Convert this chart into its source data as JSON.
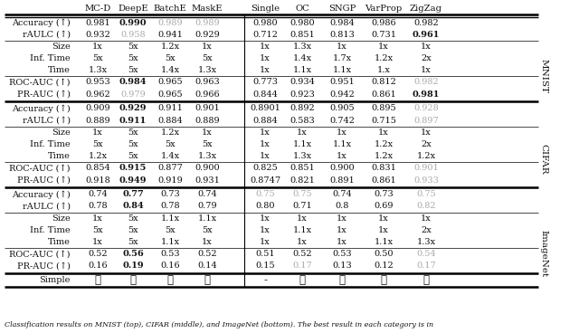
{
  "col_headers": [
    "MC-D",
    "DeepE",
    "BatchE",
    "MaskE",
    "Single",
    "OC",
    "SNGP",
    "VarProp",
    "ZigZag"
  ],
  "section_labels": [
    "MNIST",
    "CIFAR",
    "ImageNet"
  ],
  "rows": [
    {
      "section": "MNIST",
      "label": "Accuracy (↑)",
      "values": [
        "0.981",
        "0.990",
        "0.989",
        "0.989",
        "0.980",
        "0.980",
        "0.984",
        "0.986",
        "0.982"
      ],
      "bold": [
        false,
        true,
        false,
        false,
        false,
        false,
        false,
        false,
        false
      ],
      "gray": [
        false,
        false,
        true,
        true,
        false,
        false,
        false,
        false,
        false
      ]
    },
    {
      "section": "MNIST",
      "label": "rAULC (↑)",
      "values": [
        "0.932",
        "0.958",
        "0.941",
        "0.929",
        "0.712",
        "0.851",
        "0.813",
        "0.731",
        "0.961"
      ],
      "bold": [
        false,
        false,
        false,
        false,
        false,
        false,
        false,
        false,
        true
      ],
      "gray": [
        false,
        true,
        false,
        false,
        false,
        false,
        false,
        false,
        false
      ]
    },
    {
      "section": "MNIST",
      "label": "Size",
      "values": [
        "1x",
        "5x",
        "1.2x",
        "1x",
        "1x",
        "1.3x",
        "1x",
        "1x",
        "1x"
      ],
      "bold": [
        false,
        false,
        false,
        false,
        false,
        false,
        false,
        false,
        false
      ],
      "gray": [
        false,
        false,
        false,
        false,
        false,
        false,
        false,
        false,
        false
      ]
    },
    {
      "section": "MNIST",
      "label": "Inf. Time",
      "values": [
        "5x",
        "5x",
        "5x",
        "5x",
        "1x",
        "1.4x",
        "1.7x",
        "1.2x",
        "2x"
      ],
      "bold": [
        false,
        false,
        false,
        false,
        false,
        false,
        false,
        false,
        false
      ],
      "gray": [
        false,
        false,
        false,
        false,
        false,
        false,
        false,
        false,
        false
      ]
    },
    {
      "section": "MNIST",
      "label": "Time",
      "values": [
        "1.3x",
        "5x",
        "1.4x",
        "1.3x",
        "1x",
        "1.1x",
        "1.1x",
        "1.x",
        "1x"
      ],
      "bold": [
        false,
        false,
        false,
        false,
        false,
        false,
        false,
        false,
        false
      ],
      "gray": [
        false,
        false,
        false,
        false,
        false,
        false,
        false,
        false,
        false
      ]
    },
    {
      "section": "MNIST",
      "label": "ROC-AUC (↑)",
      "values": [
        "0.953",
        "0.984",
        "0.965",
        "0.963",
        "0.773",
        "0.934",
        "0.951",
        "0.812",
        "0.982"
      ],
      "bold": [
        false,
        true,
        false,
        false,
        false,
        false,
        false,
        false,
        false
      ],
      "gray": [
        false,
        false,
        false,
        false,
        false,
        false,
        false,
        false,
        true
      ]
    },
    {
      "section": "MNIST",
      "label": "PR-AUC (↑)",
      "values": [
        "0.962",
        "0.979",
        "0.965",
        "0.966",
        "0.844",
        "0.923",
        "0.942",
        "0.861",
        "0.981"
      ],
      "bold": [
        false,
        false,
        false,
        false,
        false,
        false,
        false,
        false,
        true
      ],
      "gray": [
        false,
        true,
        false,
        false,
        false,
        false,
        false,
        false,
        false
      ]
    },
    {
      "section": "CIFAR",
      "label": "Accuracy (↑)",
      "values": [
        "0.909",
        "0.929",
        "0.911",
        "0.901",
        "0.8901",
        "0.892",
        "0.905",
        "0.895",
        "0.928"
      ],
      "bold": [
        false,
        true,
        false,
        false,
        false,
        false,
        false,
        false,
        false
      ],
      "gray": [
        false,
        false,
        false,
        false,
        false,
        false,
        false,
        false,
        true
      ]
    },
    {
      "section": "CIFAR",
      "label": "rAULC (↑)",
      "values": [
        "0.889",
        "0.911",
        "0.884",
        "0.889",
        "0.884",
        "0.583",
        "0.742",
        "0.715",
        "0.897"
      ],
      "bold": [
        false,
        true,
        false,
        false,
        false,
        false,
        false,
        false,
        false
      ],
      "gray": [
        false,
        false,
        false,
        false,
        false,
        false,
        false,
        false,
        true
      ]
    },
    {
      "section": "CIFAR",
      "label": "Size",
      "values": [
        "1x",
        "5x",
        "1.2x",
        "1x",
        "1x",
        "1x",
        "1x",
        "1x",
        "1x"
      ],
      "bold": [
        false,
        false,
        false,
        false,
        false,
        false,
        false,
        false,
        false
      ],
      "gray": [
        false,
        false,
        false,
        false,
        false,
        false,
        false,
        false,
        false
      ]
    },
    {
      "section": "CIFAR",
      "label": "Inf. Time",
      "values": [
        "5x",
        "5x",
        "5x",
        "5x",
        "1x",
        "1.1x",
        "1.1x",
        "1.2x",
        "2x"
      ],
      "bold": [
        false,
        false,
        false,
        false,
        false,
        false,
        false,
        false,
        false
      ],
      "gray": [
        false,
        false,
        false,
        false,
        false,
        false,
        false,
        false,
        false
      ]
    },
    {
      "section": "CIFAR",
      "label": "Time",
      "values": [
        "1.2x",
        "5x",
        "1.4x",
        "1.3x",
        "1x",
        "1.3x",
        "1x",
        "1.2x",
        "1.2x"
      ],
      "bold": [
        false,
        false,
        false,
        false,
        false,
        false,
        false,
        false,
        false
      ],
      "gray": [
        false,
        false,
        false,
        false,
        false,
        false,
        false,
        false,
        false
      ]
    },
    {
      "section": "CIFAR",
      "label": "ROC-AUC (↑)",
      "values": [
        "0.854",
        "0.915",
        "0.877",
        "0.900",
        "0.825",
        "0.851",
        "0.900",
        "0.831",
        "0.901"
      ],
      "bold": [
        false,
        true,
        false,
        false,
        false,
        false,
        false,
        false,
        false
      ],
      "gray": [
        false,
        false,
        false,
        false,
        false,
        false,
        false,
        false,
        true
      ]
    },
    {
      "section": "CIFAR",
      "label": "PR-AUC (↑)",
      "values": [
        "0.918",
        "0.949",
        "0.919",
        "0.931",
        "0.8747",
        "0.821",
        "0.891",
        "0.861",
        "0.933"
      ],
      "bold": [
        false,
        true,
        false,
        false,
        false,
        false,
        false,
        false,
        false
      ],
      "gray": [
        false,
        false,
        false,
        false,
        false,
        false,
        false,
        false,
        true
      ]
    },
    {
      "section": "ImageNet",
      "label": "Accuracy (↑)",
      "values": [
        "0.74",
        "0.77",
        "0.73",
        "0.74",
        "0.75",
        "0.75",
        "0.74",
        "0.73",
        "0.75"
      ],
      "bold": [
        false,
        true,
        false,
        false,
        false,
        false,
        false,
        false,
        false
      ],
      "gray": [
        false,
        false,
        false,
        false,
        true,
        true,
        false,
        false,
        true
      ]
    },
    {
      "section": "ImageNet",
      "label": "rAULC (↑)",
      "values": [
        "0.78",
        "0.84",
        "0.78",
        "0.79",
        "0.80",
        "0.71",
        "0.8",
        "0.69",
        "0.82"
      ],
      "bold": [
        false,
        true,
        false,
        false,
        false,
        false,
        false,
        false,
        false
      ],
      "gray": [
        false,
        false,
        false,
        false,
        false,
        false,
        false,
        false,
        true
      ]
    },
    {
      "section": "ImageNet",
      "label": "Size",
      "values": [
        "1x",
        "5x",
        "1.1x",
        "1.1x",
        "1x",
        "1x",
        "1x",
        "1x",
        "1x"
      ],
      "bold": [
        false,
        false,
        false,
        false,
        false,
        false,
        false,
        false,
        false
      ],
      "gray": [
        false,
        false,
        false,
        false,
        false,
        false,
        false,
        false,
        false
      ]
    },
    {
      "section": "ImageNet",
      "label": "Inf. Time",
      "values": [
        "5x",
        "5x",
        "5x",
        "5x",
        "1x",
        "1.1x",
        "1x",
        "1x",
        "2x"
      ],
      "bold": [
        false,
        false,
        false,
        false,
        false,
        false,
        false,
        false,
        false
      ],
      "gray": [
        false,
        false,
        false,
        false,
        false,
        false,
        false,
        false,
        false
      ]
    },
    {
      "section": "ImageNet",
      "label": "Time",
      "values": [
        "1x",
        "5x",
        "1.1x",
        "1x",
        "1x",
        "1x",
        "1x",
        "1.1x",
        "1.3x"
      ],
      "bold": [
        false,
        false,
        false,
        false,
        false,
        false,
        false,
        false,
        false
      ],
      "gray": [
        false,
        false,
        false,
        false,
        false,
        false,
        false,
        false,
        false
      ]
    },
    {
      "section": "ImageNet",
      "label": "ROC-AUC (↑)",
      "values": [
        "0.52",
        "0.56",
        "0.53",
        "0.52",
        "0.51",
        "0.52",
        "0.53",
        "0.50",
        "0.54"
      ],
      "bold": [
        false,
        true,
        false,
        false,
        false,
        false,
        false,
        false,
        false
      ],
      "gray": [
        false,
        false,
        false,
        false,
        false,
        false,
        false,
        false,
        true
      ]
    },
    {
      "section": "ImageNet",
      "label": "PR-AUC (↑)",
      "values": [
        "0.16",
        "0.19",
        "0.16",
        "0.14",
        "0.15",
        "0.17",
        "0.13",
        "0.12",
        "0.17"
      ],
      "bold": [
        false,
        true,
        false,
        false,
        false,
        false,
        false,
        false,
        false
      ],
      "gray": [
        false,
        false,
        false,
        false,
        false,
        true,
        false,
        false,
        true
      ]
    },
    {
      "section": "Simple",
      "label": "Simple",
      "values": [
        "✓",
        "✓",
        "✗",
        "✗",
        "-",
        "✓",
        "✗",
        "✗",
        "✓"
      ],
      "bold": [
        false,
        false,
        false,
        false,
        false,
        false,
        false,
        false,
        false
      ],
      "gray": [
        false,
        false,
        false,
        false,
        false,
        false,
        false,
        false,
        false
      ]
    }
  ],
  "caption": "Classification results on MNIST (top), CIFAR (middle), and ImageNet (bottom). The best result in each category is in",
  "gray_color": "#aaaaaa",
  "black_color": "#111111",
  "bg_color": "#ffffff",
  "header_fs": 7.2,
  "cell_fs": 7.0,
  "label_fs": 7.0,
  "caption_fs": 5.8
}
